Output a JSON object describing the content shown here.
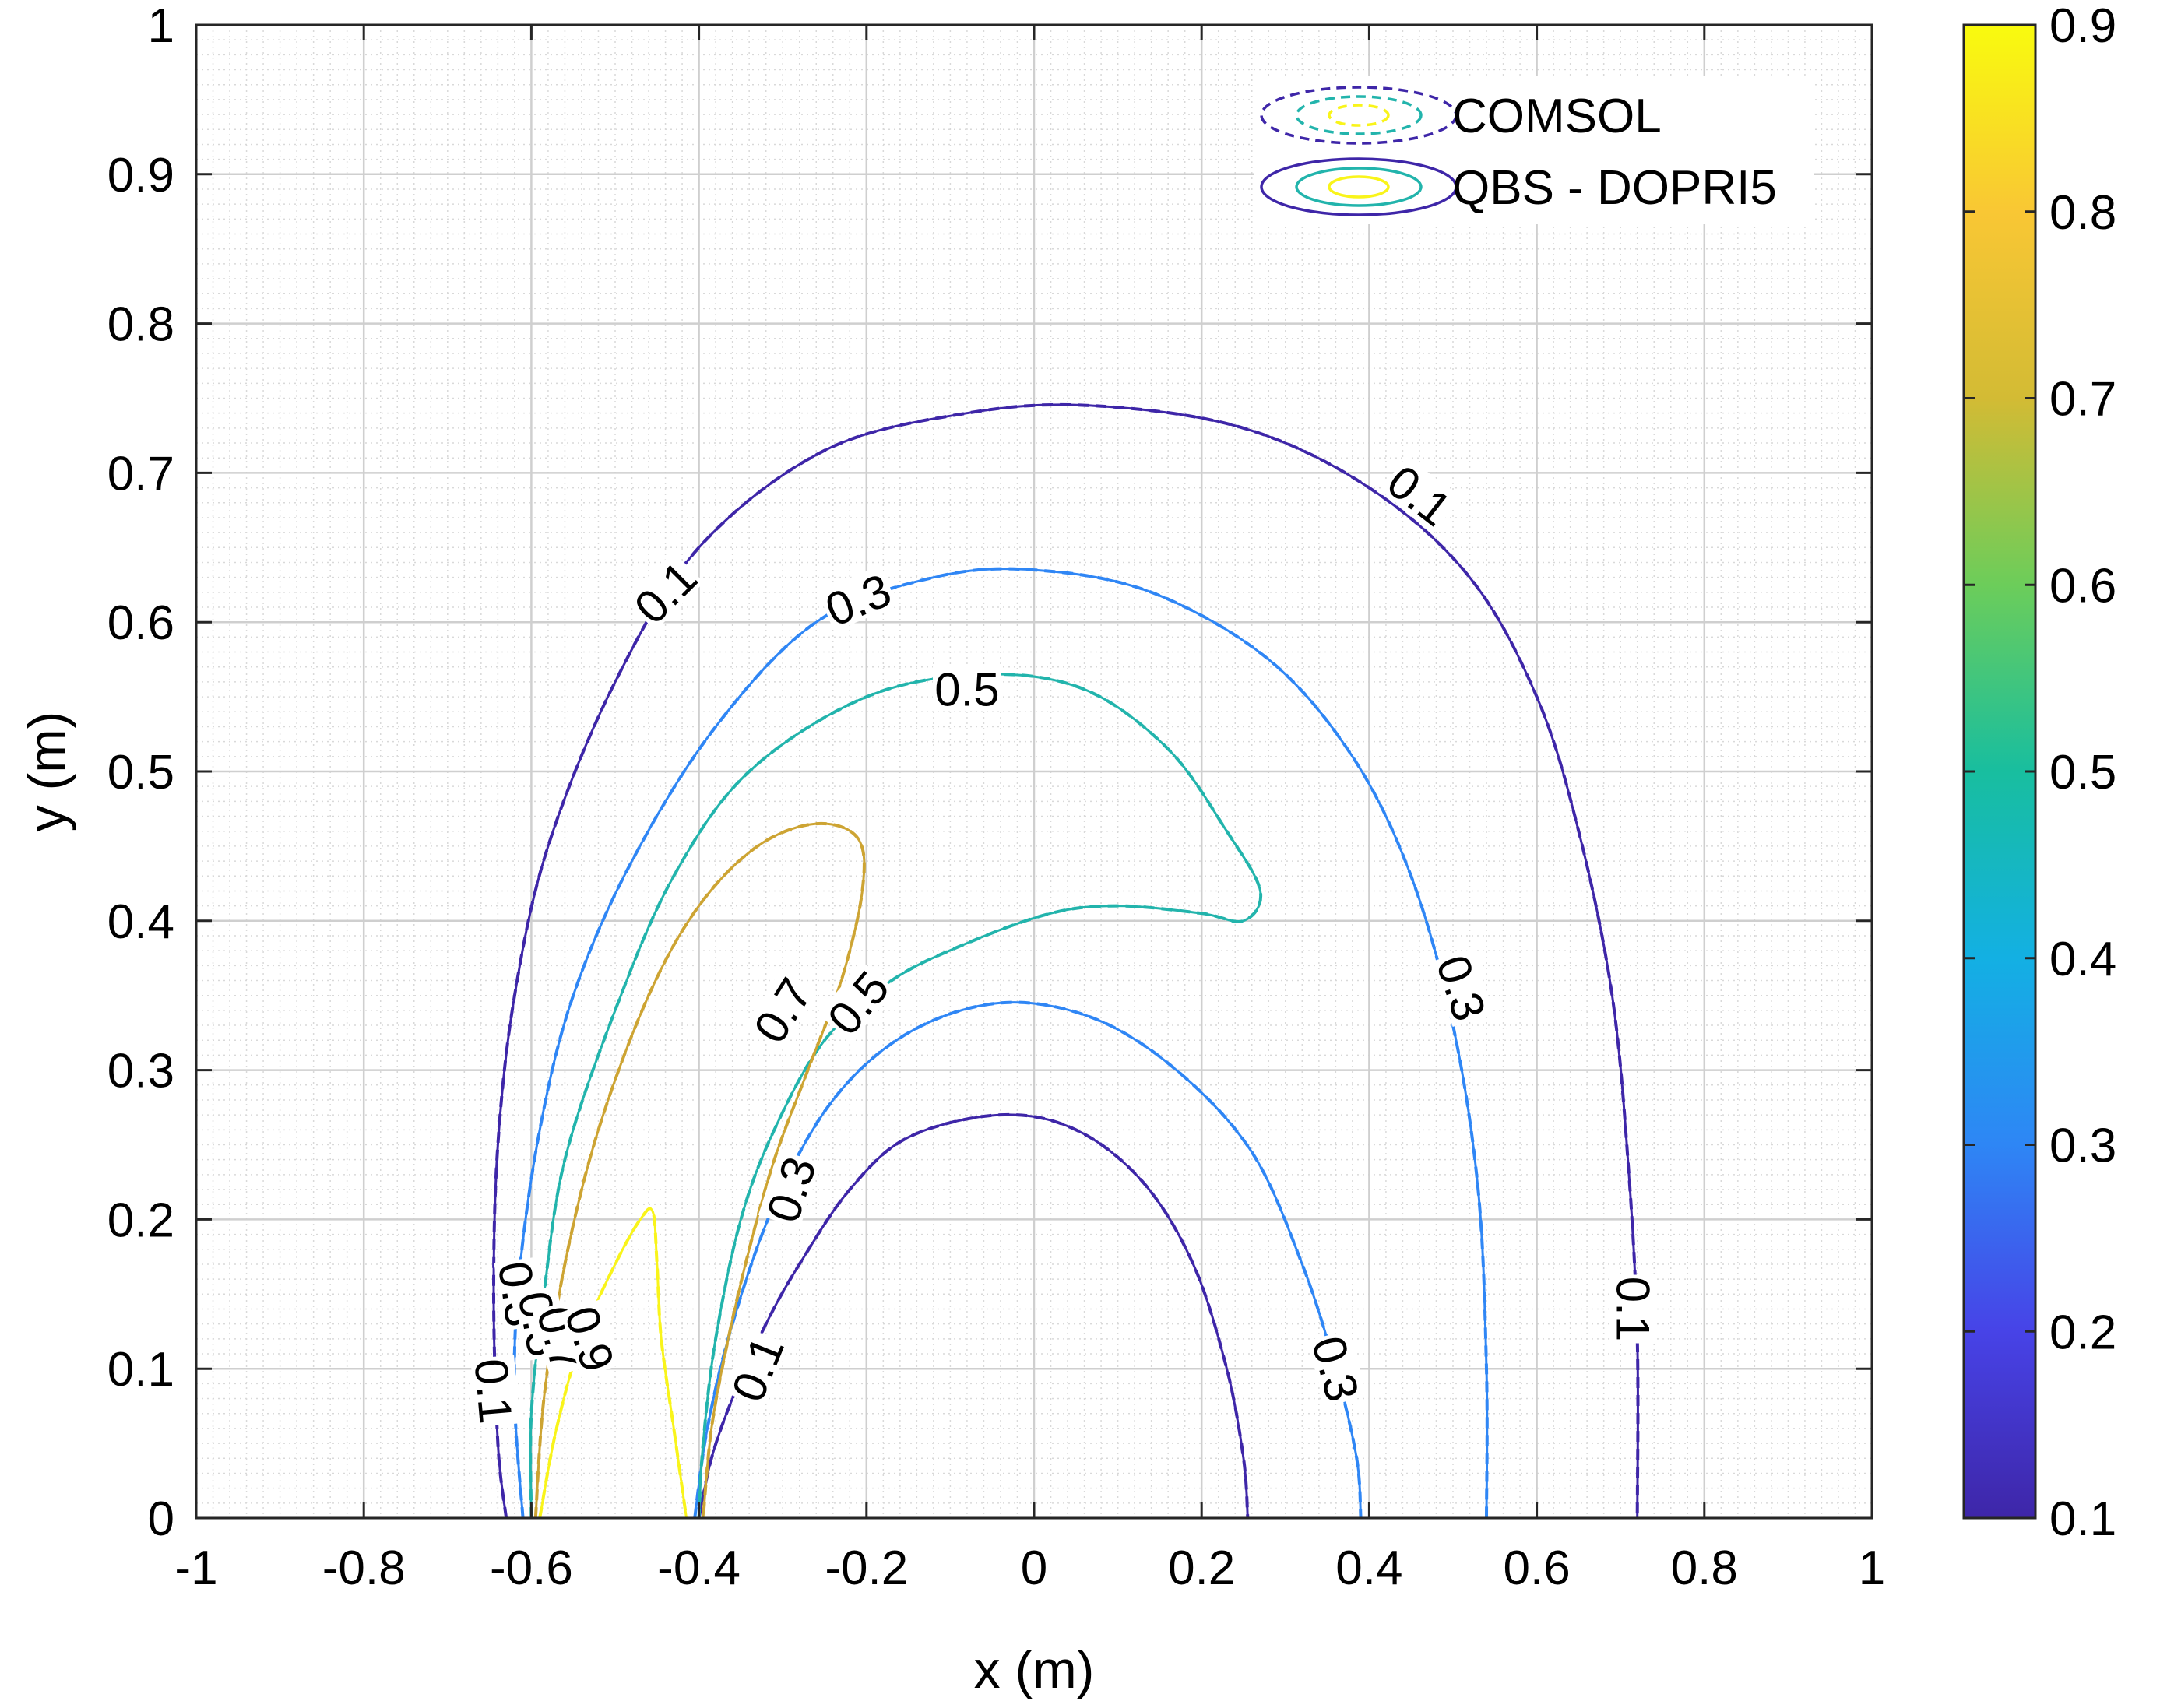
{
  "chart_data": {
    "type": "contour",
    "xlabel": "x (m)",
    "ylabel": "y (m)",
    "xlim": [
      -1,
      1
    ],
    "ylim": [
      0,
      1
    ],
    "xticks": [
      -1,
      -0.8,
      -0.6,
      -0.4,
      -0.2,
      0,
      0.2,
      0.4,
      0.6,
      0.8,
      1
    ],
    "xtick_labels": [
      "-1",
      "-0.8",
      "-0.6",
      "-0.4",
      "-0.2",
      "0",
      "0.2",
      "0.4",
      "0.6",
      "0.8",
      "1"
    ],
    "yticks": [
      0,
      0.1,
      0.2,
      0.3,
      0.4,
      0.5,
      0.6,
      0.7,
      0.8,
      0.9,
      1
    ],
    "ytick_labels": [
      "0",
      "0.1",
      "0.2",
      "0.3",
      "0.4",
      "0.5",
      "0.6",
      "0.7",
      "0.8",
      "0.9",
      "1"
    ],
    "grid": true,
    "minor_grid": true,
    "colorbar": {
      "range": [
        0.1,
        0.9
      ],
      "ticks": [
        0.1,
        0.2,
        0.3,
        0.4,
        0.5,
        0.6,
        0.7,
        0.8,
        0.9
      ],
      "tick_labels": [
        "0.1",
        "0.2",
        "0.3",
        "0.4",
        "0.5",
        "0.6",
        "0.7",
        "0.8",
        "0.9"
      ],
      "colormap": [
        "#3e26a8",
        "#4743e7",
        "#2e86f5",
        "#13b0e3",
        "#18be9f",
        "#6ccd5a",
        "#d3bb34",
        "#f9c734",
        "#f9fb0e"
      ]
    },
    "legend": {
      "placement": "top-right",
      "entries": [
        {
          "label": "COMSOL",
          "linestyle": "dashed"
        },
        {
          "label": "QBS - DOPRI5",
          "linestyle": "solid"
        }
      ]
    },
    "level_colors": {
      "0.1": "#3e26a8",
      "0.3": "#2f86f5",
      "0.5": "#22b4ac",
      "0.7": "#cda433",
      "0.9": "#f9f41a"
    },
    "contours": [
      {
        "level": 0.1,
        "points": [
          [
            -0.63,
            0
          ],
          [
            -0.64,
            0.05
          ],
          [
            -0.645,
            0.15
          ],
          [
            -0.64,
            0.25
          ],
          [
            -0.62,
            0.35
          ],
          [
            -0.58,
            0.45
          ],
          [
            -0.5,
            0.56
          ],
          [
            -0.4,
            0.65
          ],
          [
            -0.25,
            0.715
          ],
          [
            -0.08,
            0.74
          ],
          [
            0.07,
            0.745
          ],
          [
            0.25,
            0.73
          ],
          [
            0.4,
            0.69
          ],
          [
            0.52,
            0.63
          ],
          [
            0.6,
            0.55
          ],
          [
            0.65,
            0.46
          ],
          [
            0.69,
            0.35
          ],
          [
            0.71,
            0.23
          ],
          [
            0.72,
            0.12
          ],
          [
            0.72,
            0
          ]
        ]
      },
      {
        "level": 0.1,
        "points": [
          [
            -0.4,
            0
          ],
          [
            -0.385,
            0.04
          ],
          [
            -0.36,
            0.08
          ],
          [
            -0.32,
            0.13
          ],
          [
            -0.28,
            0.17
          ],
          [
            -0.22,
            0.22
          ],
          [
            -0.15,
            0.255
          ],
          [
            -0.04,
            0.27
          ],
          [
            0.05,
            0.26
          ],
          [
            0.13,
            0.225
          ],
          [
            0.19,
            0.17
          ],
          [
            0.23,
            0.1
          ],
          [
            0.25,
            0.04
          ],
          [
            0.255,
            0
          ]
        ]
      },
      {
        "level": 0.3,
        "points": [
          [
            -0.61,
            0
          ],
          [
            -0.62,
            0.08
          ],
          [
            -0.615,
            0.16
          ],
          [
            -0.59,
            0.26
          ],
          [
            -0.55,
            0.35
          ],
          [
            -0.48,
            0.44
          ],
          [
            -0.38,
            0.53
          ],
          [
            -0.26,
            0.6
          ],
          [
            -0.12,
            0.63
          ],
          [
            0,
            0.635
          ],
          [
            0.14,
            0.62
          ],
          [
            0.28,
            0.575
          ],
          [
            0.38,
            0.51
          ],
          [
            0.45,
            0.43
          ],
          [
            0.5,
            0.33
          ],
          [
            0.53,
            0.22
          ],
          [
            0.54,
            0.1
          ],
          [
            0.54,
            0
          ]
        ]
      },
      {
        "level": 0.3,
        "points": [
          [
            -0.405,
            0
          ],
          [
            -0.39,
            0.06
          ],
          [
            -0.36,
            0.13
          ],
          [
            -0.31,
            0.21
          ],
          [
            -0.24,
            0.28
          ],
          [
            -0.15,
            0.325
          ],
          [
            -0.04,
            0.345
          ],
          [
            0.07,
            0.335
          ],
          [
            0.17,
            0.3
          ],
          [
            0.26,
            0.245
          ],
          [
            0.32,
            0.17
          ],
          [
            0.36,
            0.1
          ],
          [
            0.385,
            0.04
          ],
          [
            0.39,
            0
          ]
        ]
      },
      {
        "level": 0.5,
        "points": [
          [
            -0.6,
            0
          ],
          [
            -0.6,
            0.07
          ],
          [
            -0.585,
            0.15
          ],
          [
            -0.56,
            0.24
          ],
          [
            -0.5,
            0.34
          ],
          [
            -0.43,
            0.43
          ],
          [
            -0.34,
            0.5
          ],
          [
            -0.2,
            0.55
          ],
          [
            -0.06,
            0.565
          ],
          [
            0.06,
            0.555
          ],
          [
            0.16,
            0.515
          ],
          [
            0.23,
            0.46
          ],
          [
            0.27,
            0.42
          ],
          [
            0.25,
            0.4
          ],
          [
            0.2,
            0.405
          ],
          [
            0.1,
            0.41
          ],
          [
            0.02,
            0.405
          ],
          [
            -0.08,
            0.385
          ],
          [
            -0.17,
            0.36
          ],
          [
            -0.25,
            0.32
          ],
          [
            -0.31,
            0.26
          ],
          [
            -0.35,
            0.2
          ],
          [
            -0.38,
            0.12
          ],
          [
            -0.395,
            0.05
          ],
          [
            -0.4,
            0
          ]
        ]
      },
      {
        "level": 0.7,
        "points": [
          [
            -0.595,
            0
          ],
          [
            -0.585,
            0.08
          ],
          [
            -0.56,
            0.17
          ],
          [
            -0.52,
            0.26
          ],
          [
            -0.46,
            0.35
          ],
          [
            -0.4,
            0.41
          ],
          [
            -0.33,
            0.45
          ],
          [
            -0.26,
            0.465
          ],
          [
            -0.21,
            0.455
          ],
          [
            -0.205,
            0.42
          ],
          [
            -0.23,
            0.36
          ],
          [
            -0.27,
            0.3
          ],
          [
            -0.31,
            0.24
          ],
          [
            -0.34,
            0.18
          ],
          [
            -0.365,
            0.12
          ],
          [
            -0.385,
            0.06
          ],
          [
            -0.395,
            0
          ]
        ]
      },
      {
        "level": 0.9,
        "points": [
          [
            -0.59,
            0
          ],
          [
            -0.57,
            0.06
          ],
          [
            -0.54,
            0.12
          ],
          [
            -0.5,
            0.17
          ],
          [
            -0.47,
            0.2
          ],
          [
            -0.455,
            0.205
          ],
          [
            -0.45,
            0.17
          ],
          [
            -0.445,
            0.12
          ],
          [
            -0.43,
            0.06
          ],
          [
            -0.415,
            0
          ]
        ]
      }
    ],
    "contour_labels": [
      {
        "text": "0.1",
        "x": -0.44,
        "y": 0.62,
        "angle": -45
      },
      {
        "text": "0.3",
        "x": -0.21,
        "y": 0.615,
        "angle": -22
      },
      {
        "text": "0.5",
        "x": -0.08,
        "y": 0.555,
        "angle": 0
      },
      {
        "text": "0.1",
        "x": 0.46,
        "y": 0.685,
        "angle": 38
      },
      {
        "text": "0.7",
        "x": -0.3,
        "y": 0.34,
        "angle": -58
      },
      {
        "text": "0.5",
        "x": -0.21,
        "y": 0.345,
        "angle": -50
      },
      {
        "text": "0.3",
        "x": -0.29,
        "y": 0.22,
        "angle": -72
      },
      {
        "text": "0.1",
        "x": -0.33,
        "y": 0.1,
        "angle": -68
      },
      {
        "text": "0.3",
        "x": 0.51,
        "y": 0.355,
        "angle": 72
      },
      {
        "text": "0.3",
        "x": 0.36,
        "y": 0.1,
        "angle": 75
      },
      {
        "text": "0.1",
        "x": 0.715,
        "y": 0.14,
        "angle": 90
      },
      {
        "text": "0.1",
        "x": -0.645,
        "y": 0.085,
        "angle": 85
      },
      {
        "text": "0.3",
        "x": -0.615,
        "y": 0.15,
        "angle": 82
      },
      {
        "text": "0.5",
        "x": -0.59,
        "y": 0.13,
        "angle": 80
      },
      {
        "text": "0.7",
        "x": -0.565,
        "y": 0.12,
        "angle": 75
      },
      {
        "text": "0.9",
        "x": -0.53,
        "y": 0.12,
        "angle": 72
      }
    ]
  }
}
